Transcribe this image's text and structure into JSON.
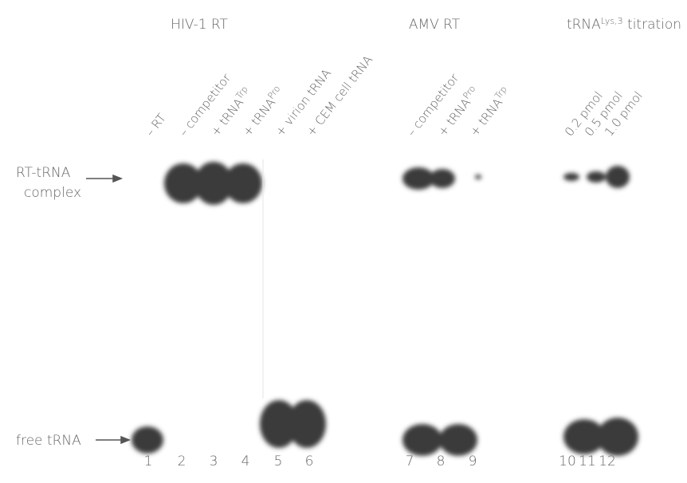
{
  "groups": [
    {
      "text": "HIV-1 RT"
    },
    {
      "text": "AMV RT"
    },
    {
      "text": "tRNA",
      "sup": "Lys,3",
      "after": " titration"
    }
  ],
  "lane_labels": [
    {
      "text": "– RT"
    },
    {
      "text": "– competitor"
    },
    {
      "text": "+ tRNA",
      "sup": "Trp"
    },
    {
      "text": "+ tRNA",
      "sup": "Pro"
    },
    {
      "text": "+ virion tRNA"
    },
    {
      "text": "+ CEM cell tRNA"
    },
    {
      "text": "– competitor"
    },
    {
      "text": "+ tRNA",
      "sup": "Pro"
    },
    {
      "text": "+ tRNA",
      "sup": "Trp"
    },
    {
      "text": "0.2 pmol"
    },
    {
      "text": "0.5 pmol"
    },
    {
      "text": "1.0 pmol"
    }
  ],
  "rows": {
    "complex": [
      "RT-tRNA",
      "complex"
    ],
    "free": "free tRNA"
  },
  "lane_numbers": [
    "1",
    "2",
    "3",
    "4",
    "5",
    "6",
    "7",
    "8",
    "9",
    "10",
    "11",
    "12"
  ]
}
